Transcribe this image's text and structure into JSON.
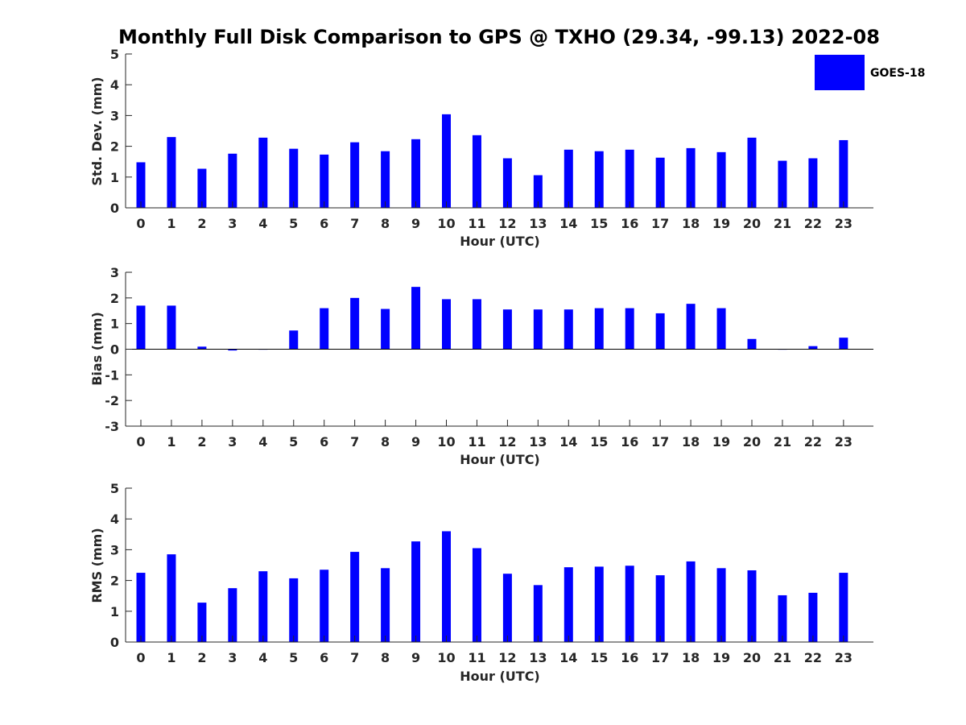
{
  "figure": {
    "title": "Monthly Full Disk Comparison to GPS @ TXHO (29.34, -99.13) 2022-08"
  },
  "legend": {
    "label": "GOES-18",
    "color": "#0000ff"
  },
  "chart_data": [
    {
      "type": "bar",
      "title": "Monthly Full Disk Comparison to GPS @ TXHO (29.34, -99.13) 2022-08",
      "xlabel": "Hour (UTC)",
      "ylabel": "Std. Dev. (mm)",
      "ylim": [
        0,
        5
      ],
      "yticks": [
        0,
        1,
        2,
        3,
        4,
        5
      ],
      "categories": [
        "0",
        "1",
        "2",
        "3",
        "4",
        "5",
        "6",
        "7",
        "8",
        "9",
        "10",
        "11",
        "12",
        "13",
        "14",
        "15",
        "16",
        "17",
        "18",
        "19",
        "20",
        "21",
        "22",
        "23"
      ],
      "series": [
        {
          "name": "GOES-18",
          "color": "#0000ff",
          "values": [
            1.48,
            2.3,
            1.27,
            1.76,
            2.28,
            1.92,
            1.73,
            2.13,
            1.84,
            2.23,
            3.04,
            2.36,
            1.61,
            1.06,
            1.89,
            1.84,
            1.89,
            1.63,
            1.94,
            1.81,
            2.28,
            1.53,
            1.61,
            2.2
          ]
        }
      ]
    },
    {
      "type": "bar",
      "xlabel": "Hour (UTC)",
      "ylabel": "Bias (mm)",
      "ylim": [
        -3,
        3
      ],
      "yticks": [
        -3,
        -2,
        -1,
        0,
        1,
        2,
        3
      ],
      "categories": [
        "0",
        "1",
        "2",
        "3",
        "4",
        "5",
        "6",
        "7",
        "8",
        "9",
        "10",
        "11",
        "12",
        "13",
        "14",
        "15",
        "16",
        "17",
        "18",
        "19",
        "20",
        "21",
        "22",
        "23"
      ],
      "series": [
        {
          "name": "GOES-18",
          "color": "#0000ff",
          "values": [
            1.7,
            1.7,
            0.1,
            -0.05,
            -0.01,
            0.73,
            1.6,
            2.0,
            1.57,
            2.43,
            1.95,
            1.95,
            1.55,
            1.55,
            1.55,
            1.6,
            1.6,
            1.4,
            1.77,
            1.6,
            0.4,
            0.0,
            0.12,
            0.45
          ]
        }
      ]
    },
    {
      "type": "bar",
      "xlabel": "Hour (UTC)",
      "ylabel": "RMS (mm)",
      "ylim": [
        0,
        5
      ],
      "yticks": [
        0,
        1,
        2,
        3,
        4,
        5
      ],
      "categories": [
        "0",
        "1",
        "2",
        "3",
        "4",
        "5",
        "6",
        "7",
        "8",
        "9",
        "10",
        "11",
        "12",
        "13",
        "14",
        "15",
        "16",
        "17",
        "18",
        "19",
        "20",
        "21",
        "22",
        "23"
      ],
      "series": [
        {
          "name": "GOES-18",
          "color": "#0000ff",
          "values": [
            2.25,
            2.85,
            1.28,
            1.75,
            2.3,
            2.07,
            2.35,
            2.93,
            2.4,
            3.27,
            3.6,
            3.05,
            2.22,
            1.85,
            2.43,
            2.45,
            2.48,
            2.17,
            2.62,
            2.4,
            2.33,
            1.52,
            1.6,
            2.25
          ]
        }
      ]
    }
  ]
}
